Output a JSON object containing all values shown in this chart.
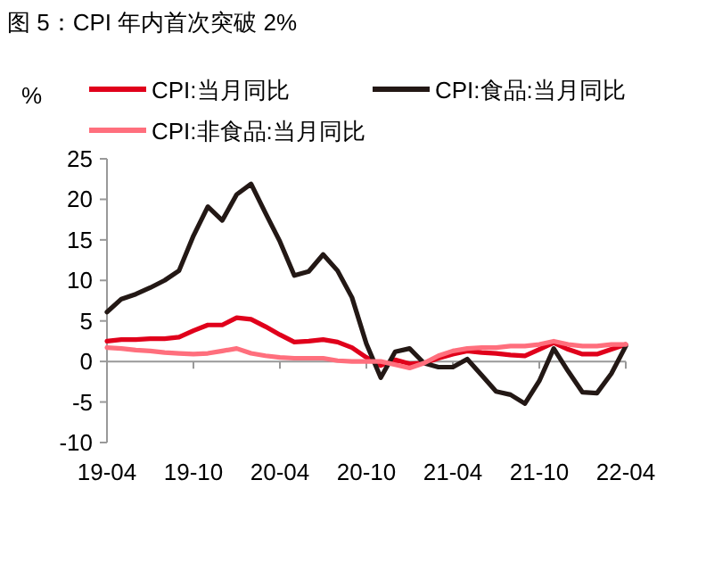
{
  "chart_data": {
    "type": "line",
    "title": "图 5：CPI 年内首次突破 2%",
    "ylabel": "%",
    "categories": [
      "19-04",
      null,
      null,
      null,
      null,
      null,
      "19-10",
      null,
      null,
      null,
      null,
      null,
      "20-04",
      null,
      null,
      null,
      null,
      null,
      "20-10",
      null,
      null,
      null,
      null,
      null,
      "21-04",
      null,
      null,
      null,
      null,
      null,
      "21-10",
      null,
      null,
      null,
      null,
      null,
      "22-04"
    ],
    "series": [
      {
        "name": "CPI:当月同比",
        "color": "#e0001b",
        "values": [
          2.5,
          2.7,
          2.7,
          2.8,
          2.8,
          3.0,
          3.8,
          4.5,
          4.5,
          5.4,
          5.2,
          4.3,
          3.3,
          2.4,
          2.5,
          2.7,
          2.4,
          1.7,
          0.5,
          -0.5,
          0.2,
          -0.3,
          -0.2,
          0.4,
          0.9,
          1.3,
          1.1,
          1.0,
          0.8,
          0.7,
          1.5,
          2.3,
          1.5,
          0.9,
          0.9,
          1.5,
          2.1
        ]
      },
      {
        "name": "CPI:食品:当月同比",
        "color": "#231815",
        "values": [
          6.1,
          7.7,
          8.3,
          9.1,
          10.0,
          11.2,
          15.5,
          19.1,
          17.4,
          20.6,
          21.9,
          18.3,
          14.8,
          10.6,
          11.1,
          13.2,
          11.2,
          7.9,
          2.2,
          -2.0,
          1.2,
          1.6,
          -0.2,
          -0.7,
          -0.7,
          0.3,
          -1.7,
          -3.7,
          -4.1,
          -5.2,
          -2.4,
          1.6,
          -1.2,
          -3.8,
          -3.9,
          -1.5,
          1.9
        ]
      },
      {
        "name": "CPI:非食品:当月同比",
        "color": "#ff6f7d",
        "values": [
          1.7,
          1.6,
          1.4,
          1.3,
          1.1,
          1.0,
          0.9,
          1.0,
          1.3,
          1.6,
          1.0,
          0.7,
          0.5,
          0.4,
          0.4,
          0.4,
          0.1,
          0.0,
          0.0,
          0.0,
          -0.4,
          -0.8,
          -0.2,
          0.7,
          1.3,
          1.6,
          1.7,
          1.7,
          1.9,
          1.9,
          2.1,
          2.5,
          2.1,
          1.9,
          1.9,
          2.1,
          2.1
        ]
      }
    ],
    "ylim": [
      -10,
      25
    ],
    "yticks": [
      -10,
      -5,
      0,
      5,
      10,
      15,
      20,
      25
    ],
    "legend": "top",
    "marker": "none",
    "line_style": "solid"
  }
}
